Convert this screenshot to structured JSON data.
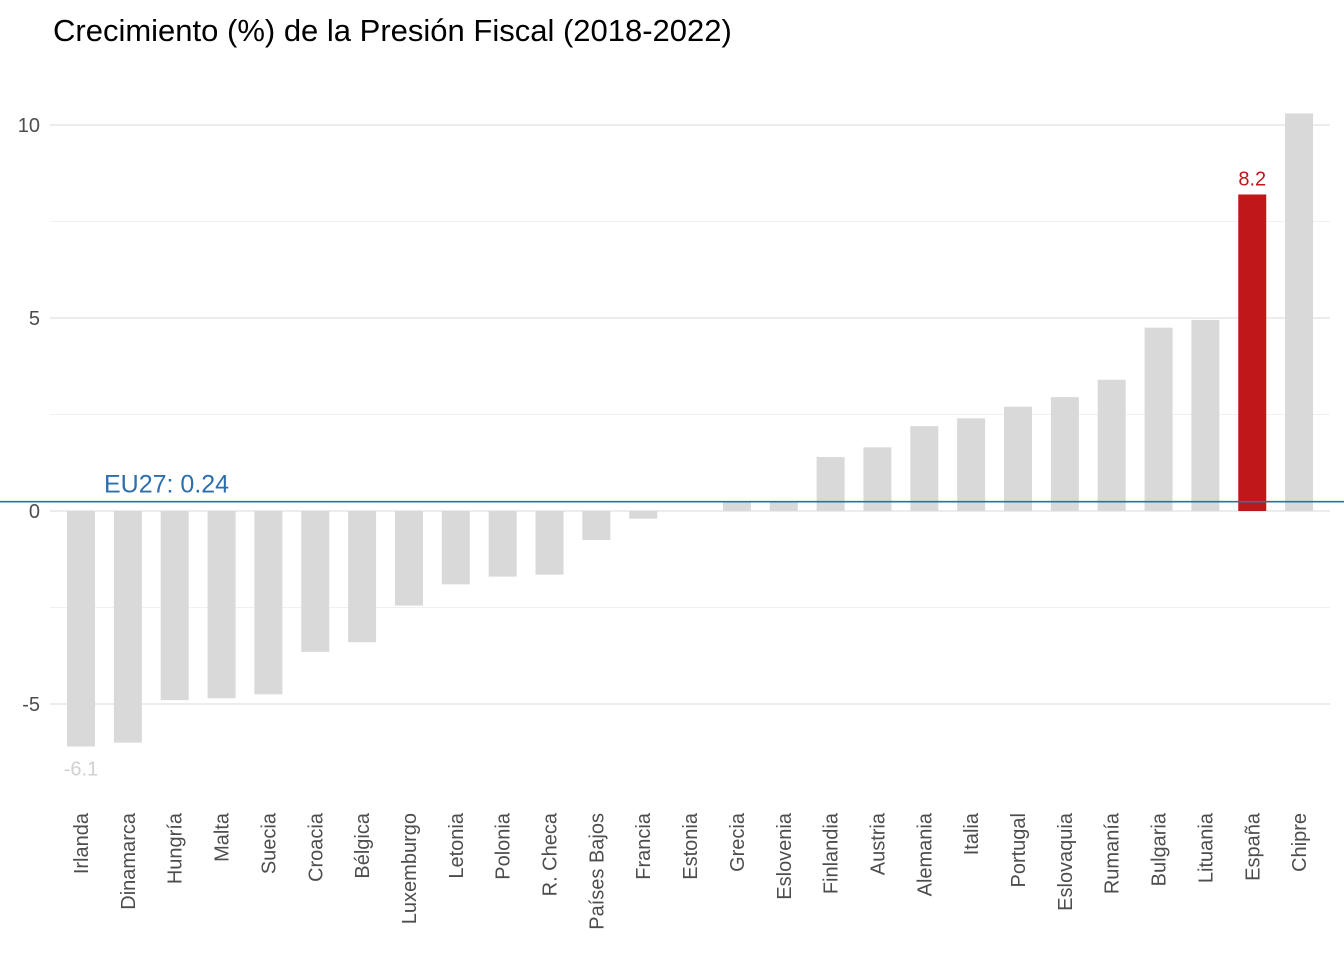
{
  "chart_data": {
    "type": "bar",
    "title": "Crecimiento (%) de la Presión Fiscal (2018-2022)",
    "xlabel": "",
    "ylabel": "",
    "ylim": [
      -7,
      10.5
    ],
    "yticks": [
      -5,
      0,
      5,
      10
    ],
    "grid": true,
    "legend": "none",
    "categories": [
      "Irlanda",
      "Dinamarca",
      "Hungría",
      "Malta",
      "Suecia",
      "Croacia",
      "Bélgica",
      "Luxemburgo",
      "Letonia",
      "Polonia",
      "R. Checa",
      "Países Bajos",
      "Francia",
      "Estonia",
      "Grecia",
      "Eslovenia",
      "Finlandia",
      "Austria",
      "Alemania",
      "Italia",
      "Portugal",
      "Eslovaquia",
      "Rumanía",
      "Bulgaria",
      "Lituania",
      "España",
      "Chipre"
    ],
    "values": [
      -6.1,
      -6.0,
      -4.9,
      -4.85,
      -4.75,
      -3.65,
      -3.4,
      -2.45,
      -1.9,
      -1.7,
      -1.65,
      -0.75,
      -0.2,
      0.0,
      0.25,
      0.25,
      1.4,
      1.65,
      2.2,
      2.4,
      2.7,
      2.95,
      3.4,
      4.75,
      4.95,
      8.2,
      10.3
    ],
    "highlight": {
      "category": "España",
      "color": "#c0171b",
      "label": "8.2"
    },
    "min_label": {
      "category": "Irlanda",
      "label": "-6.1",
      "color": "#d0d0d0"
    },
    "bar_color": "#d9d9d9",
    "reference_line": {
      "value": 0.24,
      "label": "EU27: 0.24",
      "color": "#2c6fad"
    }
  }
}
